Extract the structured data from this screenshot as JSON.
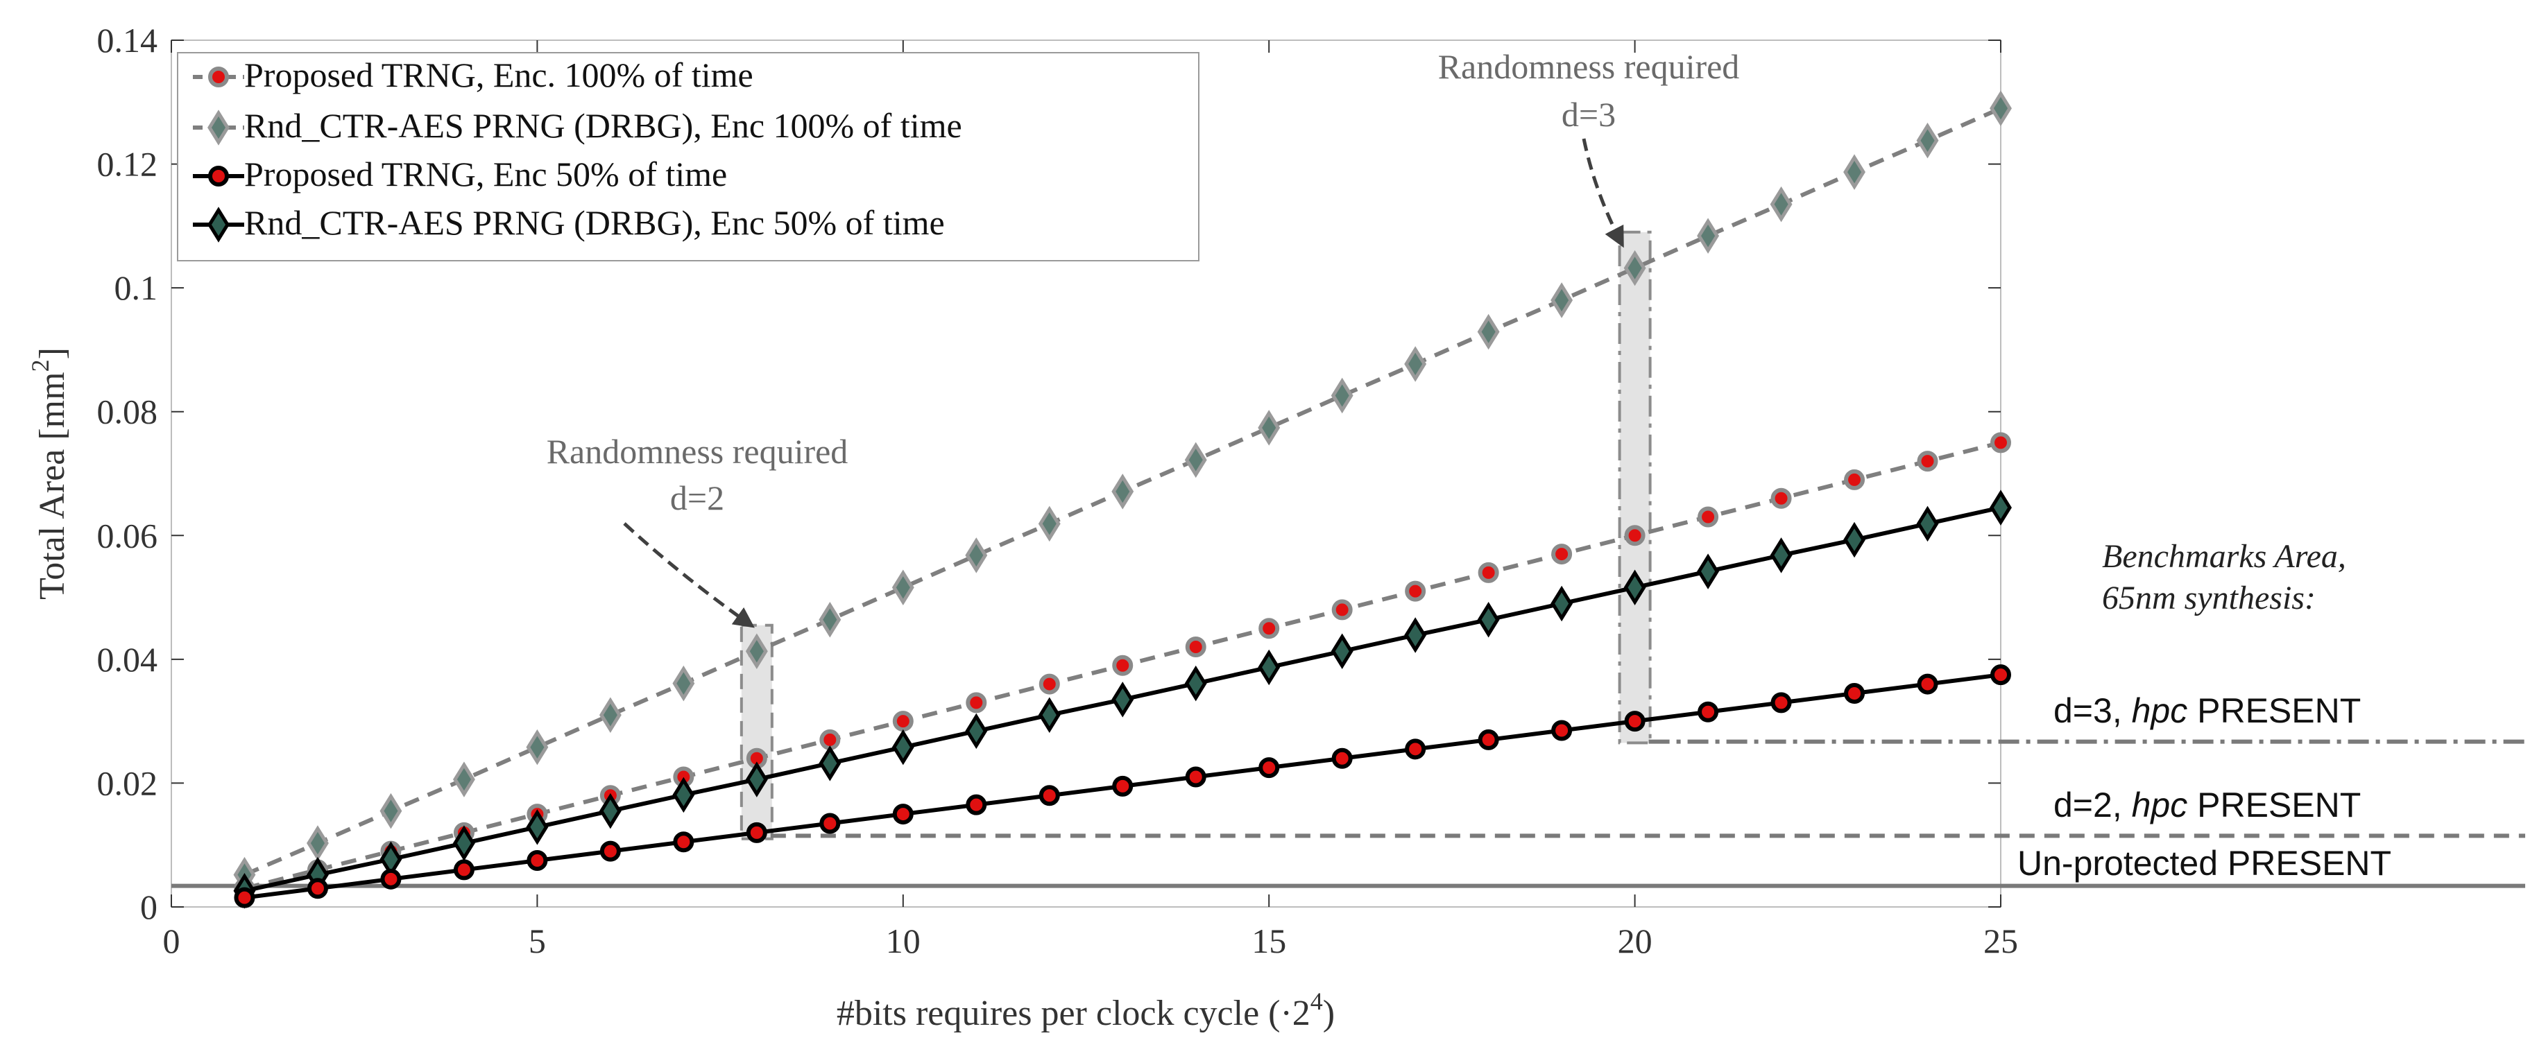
{
  "chart_data": {
    "type": "line",
    "x": [
      1,
      2,
      3,
      4,
      5,
      6,
      7,
      8,
      9,
      10,
      11,
      12,
      13,
      14,
      15,
      16,
      17,
      18,
      19,
      20,
      21,
      22,
      23,
      24,
      25
    ],
    "xlim": [
      0,
      25
    ],
    "ylim": [
      0,
      0.14
    ],
    "xticks": [
      0,
      5,
      10,
      15,
      20,
      25
    ],
    "xtick_labels": [
      "0",
      "5",
      "10",
      "15",
      "20",
      "25"
    ],
    "yticks": [
      0,
      0.02,
      0.04,
      0.06,
      0.08,
      0.1,
      0.12,
      0.14
    ],
    "ytick_labels": [
      "0",
      "0.02",
      "0.04",
      "0.06",
      "0.08",
      "0.1",
      "0.12",
      "0.14"
    ],
    "xlabel_main": "#bits requires per clock cycle (·2",
    "xlabel_sup": "4",
    "xlabel_end": ")",
    "ylabel_main": "Total Area [mm",
    "ylabel_sup": "2",
    "ylabel_end": "]",
    "legend_position": "top-left",
    "series": [
      {
        "name": "Proposed TRNG, Enc. 100% of time",
        "line_color": "#7f7f7f",
        "dash": "dashed",
        "marker": "circle",
        "marker_fill": "#e01010",
        "marker_edge": "#8a8a8a",
        "values": [
          0.003,
          0.006,
          0.009,
          0.012,
          0.015,
          0.018,
          0.021,
          0.024,
          0.027,
          0.03,
          0.033,
          0.036,
          0.039,
          0.042,
          0.045,
          0.048,
          0.051,
          0.054,
          0.057,
          0.06,
          0.063,
          0.066,
          0.069,
          0.072,
          0.075
        ]
      },
      {
        "name": "Rnd_CTR-AES PRNG (DRBG), Enc 100% of time",
        "line_color": "#7f7f7f",
        "dash": "dashed",
        "marker": "diamond",
        "marker_fill": "#5e7d74",
        "marker_edge": "#9a9a9a",
        "values": [
          0.0052,
          0.0103,
          0.0155,
          0.0206,
          0.0258,
          0.031,
          0.0361,
          0.0413,
          0.0464,
          0.0516,
          0.0568,
          0.0619,
          0.0671,
          0.0722,
          0.0774,
          0.0826,
          0.0877,
          0.0929,
          0.098,
          0.1032,
          0.1084,
          0.1135,
          0.1187,
          0.1238,
          0.129
        ]
      },
      {
        "name": "Proposed TRNG, Enc 50% of time",
        "line_color": "#000000",
        "dash": "solid",
        "marker": "circle",
        "marker_fill": "#e01010",
        "marker_edge": "#000000",
        "values": [
          0.0015,
          0.003,
          0.0045,
          0.006,
          0.0075,
          0.009,
          0.0105,
          0.012,
          0.0135,
          0.015,
          0.0165,
          0.018,
          0.0195,
          0.021,
          0.0225,
          0.024,
          0.0255,
          0.027,
          0.0285,
          0.03,
          0.0315,
          0.033,
          0.0345,
          0.036,
          0.0375
        ]
      },
      {
        "name": "Rnd_CTR-AES PRNG (DRBG), Enc 50% of time",
        "line_color": "#000000",
        "dash": "solid",
        "marker": "diamond",
        "marker_fill": "#2e5f52",
        "marker_edge": "#000000",
        "values": [
          0.0026,
          0.0052,
          0.0077,
          0.0103,
          0.0129,
          0.0155,
          0.0181,
          0.0206,
          0.0232,
          0.0258,
          0.0284,
          0.031,
          0.0335,
          0.0361,
          0.0387,
          0.0413,
          0.0439,
          0.0464,
          0.049,
          0.0516,
          0.0542,
          0.0568,
          0.0593,
          0.0619,
          0.0645
        ]
      }
    ],
    "benchmarks": {
      "title_line1": "Benchmarks Area,",
      "title_line2": "65nm synthesis:",
      "lines": [
        {
          "prefix": "d=3, ",
          "italic": "hpc",
          "suffix": " PRESENT",
          "value": 0.0267,
          "start_x": 20,
          "style": "dashdot",
          "color": "#7a7a7a"
        },
        {
          "prefix": "d=2, ",
          "italic": "hpc",
          "suffix": " PRESENT",
          "value": 0.0115,
          "start_x": 8,
          "style": "dashed",
          "color": "#7a7a7a"
        },
        {
          "prefix": "Un-protected PRESENT",
          "italic": "",
          "suffix": "",
          "value": 0.0034,
          "start_x": 0,
          "style": "solid",
          "color": "#7a7a7a"
        }
      ]
    },
    "annotations": [
      {
        "line1": "Randomness required",
        "line2": "d=2",
        "target_x": 8,
        "target_y": 0.0425,
        "box_ymin": 0.011,
        "box_ymax": 0.0455
      },
      {
        "line1": "Randomness required",
        "line2": "d=3",
        "target_x": 20,
        "target_y": 0.107,
        "box_ymin": 0.0265,
        "box_ymax": 0.109
      }
    ]
  }
}
